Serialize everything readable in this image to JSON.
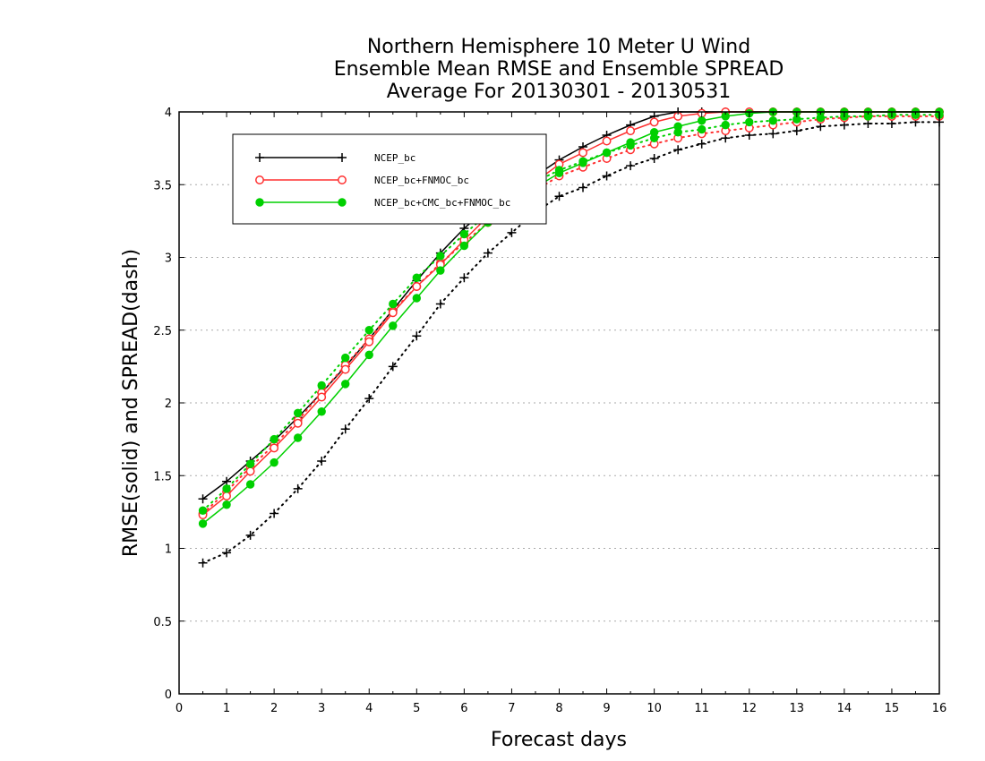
{
  "chart_data": {
    "type": "line",
    "title": [
      "Northern Hemisphere 10 Meter U Wind",
      "Ensemble Mean RMSE and Ensemble SPREAD",
      "Average For 20130301 - 20130531"
    ],
    "xlabel": "Forecast days",
    "ylabel": "RMSE(solid) and SPREAD(dash)",
    "xlim": [
      0,
      16
    ],
    "ylim": [
      0,
      4
    ],
    "xticks": [
      "0",
      "1",
      "2",
      "3",
      "4",
      "5",
      "6",
      "7",
      "8",
      "9",
      "10",
      "11",
      "12",
      "13",
      "14",
      "15",
      "16"
    ],
    "yticks": [
      "0",
      "0.5",
      "1",
      "1.5",
      "2",
      "2.5",
      "3",
      "3.5",
      "4"
    ],
    "grid": true,
    "legend_placement": "top-left",
    "x": [
      0.5,
      1,
      1.5,
      2,
      2.5,
      3,
      3.5,
      4,
      4.5,
      5,
      5.5,
      6,
      6.5,
      7,
      7.5,
      8,
      8.5,
      9,
      9.5,
      10,
      10.5,
      11,
      11.5,
      12,
      12.5,
      13,
      13.5,
      14,
      14.5,
      15,
      15.5,
      16
    ],
    "series": [
      {
        "name": "NCEP_bc",
        "color": "#000000",
        "marker": "plus",
        "rmse": [
          1.34,
          1.46,
          1.6,
          1.74,
          1.9,
          2.07,
          2.25,
          2.44,
          2.64,
          2.84,
          3.03,
          3.2,
          3.34,
          3.45,
          3.56,
          3.67,
          3.76,
          3.84,
          3.91,
          3.97,
          4.0,
          4.0,
          4.0,
          4.0,
          4.0,
          4.0,
          4.0,
          4.0,
          4.0,
          4.0,
          4.0,
          4.0
        ],
        "spread": [
          0.9,
          0.97,
          1.09,
          1.24,
          1.41,
          1.6,
          1.82,
          2.03,
          2.25,
          2.46,
          2.68,
          2.86,
          3.03,
          3.17,
          3.31,
          3.42,
          3.48,
          3.56,
          3.63,
          3.68,
          3.74,
          3.78,
          3.82,
          3.84,
          3.85,
          3.87,
          3.9,
          3.91,
          3.92,
          3.92,
          3.93,
          3.93
        ]
      },
      {
        "name": "NCEP_bc+FNMOC_bc",
        "color": "#ff3030",
        "marker": "open-circle",
        "rmse": [
          1.23,
          1.36,
          1.53,
          1.69,
          1.86,
          2.04,
          2.23,
          2.42,
          2.62,
          2.8,
          2.95,
          3.12,
          3.28,
          3.4,
          3.52,
          3.64,
          3.72,
          3.8,
          3.87,
          3.93,
          3.97,
          3.99,
          4.0,
          4.0,
          4.0,
          4.0,
          4.0,
          4.0,
          4.0,
          4.0,
          4.0,
          4.0
        ],
        "spread": [
          1.24,
          1.39,
          1.56,
          1.71,
          1.88,
          2.07,
          2.26,
          2.44,
          2.63,
          2.8,
          2.96,
          3.1,
          3.24,
          3.36,
          3.46,
          3.56,
          3.62,
          3.68,
          3.74,
          3.78,
          3.82,
          3.85,
          3.87,
          3.89,
          3.91,
          3.93,
          3.95,
          3.96,
          3.97,
          3.97,
          3.97,
          3.97
        ]
      },
      {
        "name": "NCEP_bc+CMC_bc+FNMOC_bc",
        "color": "#00d000",
        "marker": "filled-circle",
        "rmse": [
          1.17,
          1.3,
          1.44,
          1.59,
          1.76,
          1.94,
          2.13,
          2.33,
          2.53,
          2.72,
          2.91,
          3.08,
          3.24,
          3.36,
          3.48,
          3.58,
          3.65,
          3.72,
          3.79,
          3.86,
          3.9,
          3.94,
          3.97,
          3.99,
          4.0,
          4.0,
          4.0,
          4.0,
          4.0,
          4.0,
          4.0,
          4.0
        ],
        "spread": [
          1.26,
          1.41,
          1.58,
          1.75,
          1.93,
          2.12,
          2.31,
          2.5,
          2.68,
          2.86,
          3.01,
          3.16,
          3.3,
          3.41,
          3.52,
          3.6,
          3.66,
          3.72,
          3.77,
          3.82,
          3.86,
          3.88,
          3.91,
          3.93,
          3.94,
          3.95,
          3.96,
          3.97,
          3.97,
          3.98,
          3.98,
          3.98
        ]
      }
    ]
  }
}
